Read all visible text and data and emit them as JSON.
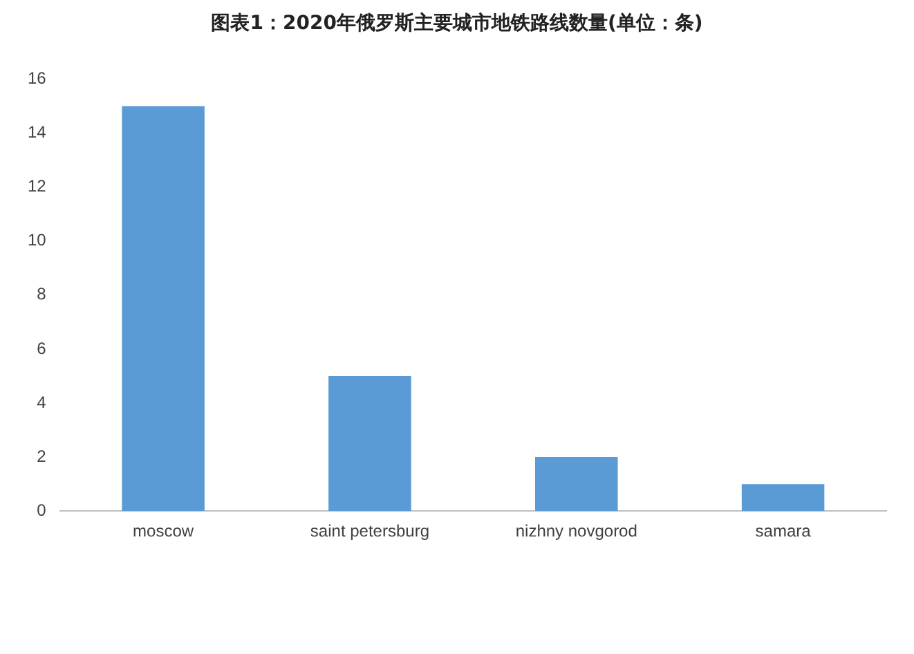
{
  "chart_data": {
    "type": "bar",
    "title": "图表1：2020年俄罗斯主要城市地铁路线数量(单位：条)",
    "categories": [
      "moscow",
      "saint petersburg",
      "nizhny novgorod",
      "samara"
    ],
    "values": [
      15,
      5,
      2,
      1
    ],
    "color": "#5b9bd5",
    "ylim": [
      0,
      16
    ],
    "yticks": [
      0,
      2,
      4,
      6,
      8,
      10,
      12,
      14,
      16
    ],
    "grid": false,
    "legend": false
  }
}
